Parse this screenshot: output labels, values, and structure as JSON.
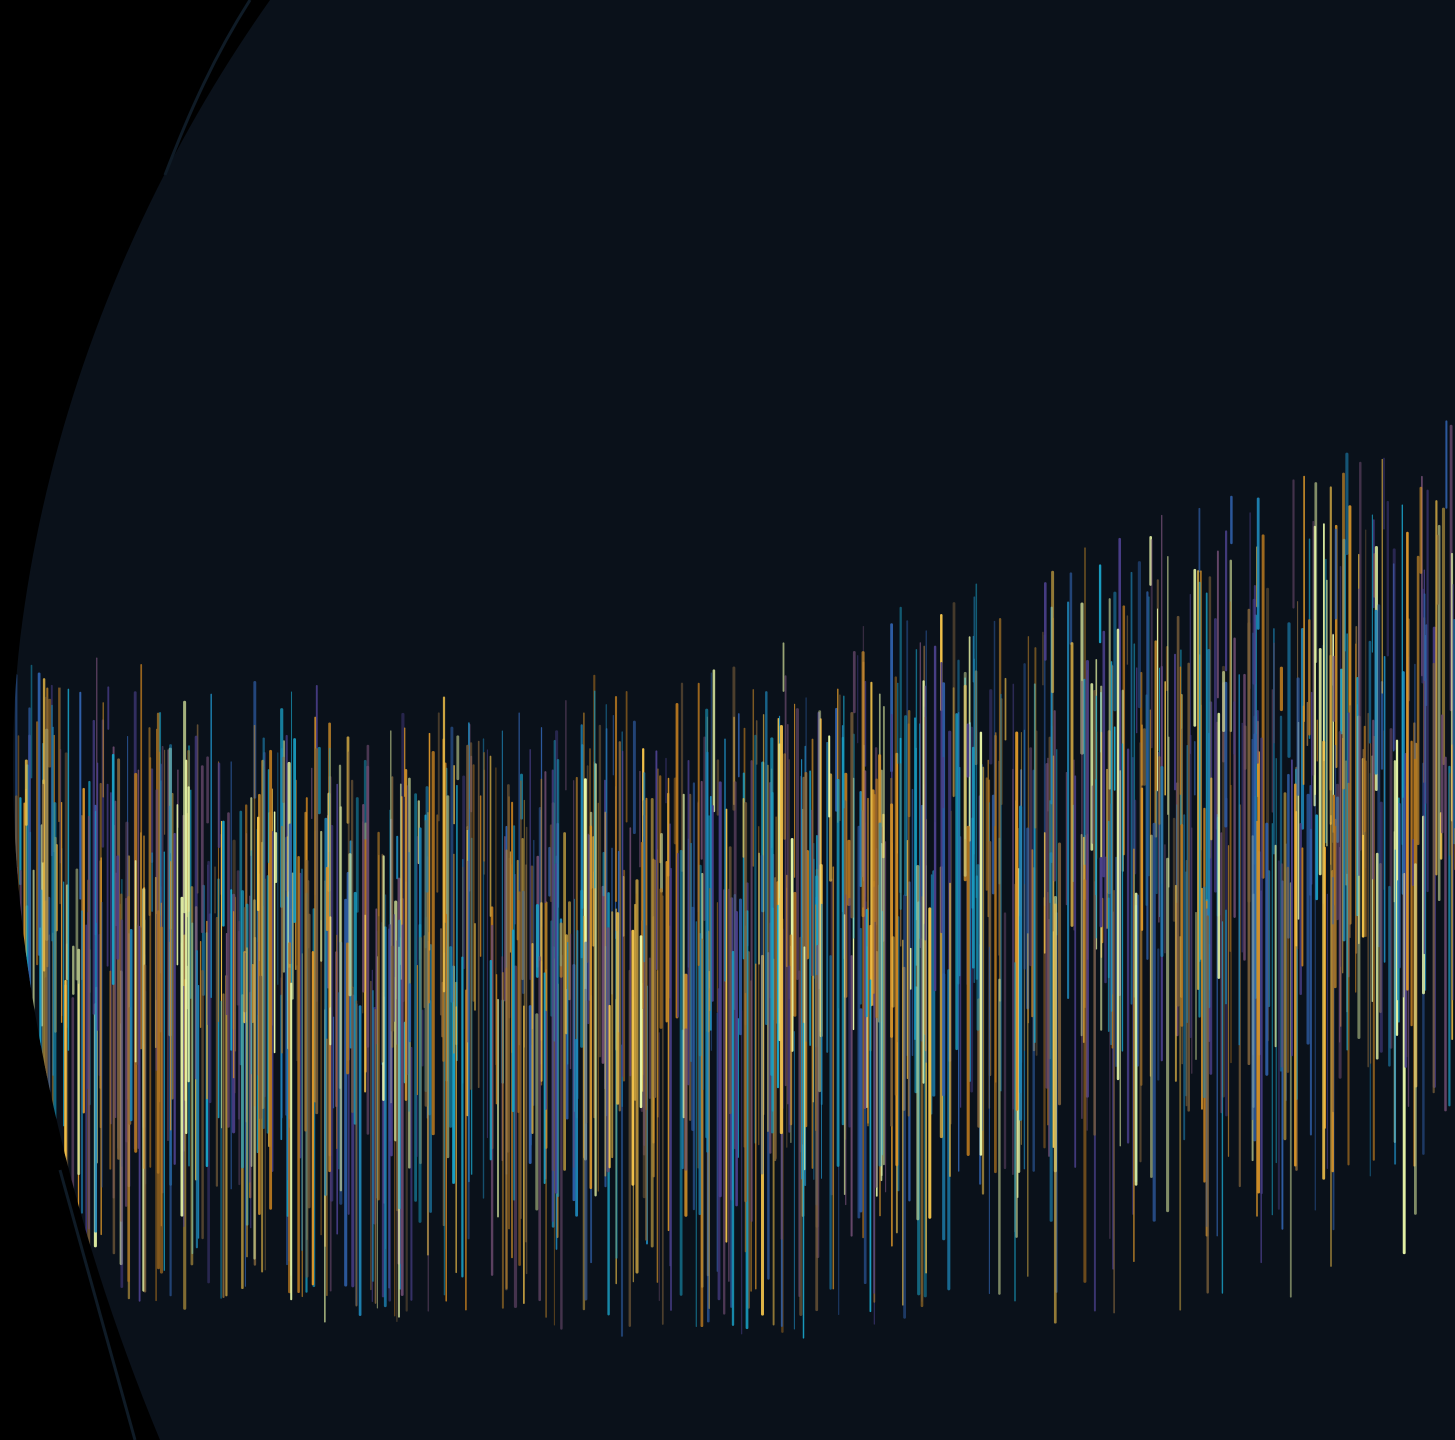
{
  "artwork": {
    "description_kind": "abstract-visualization",
    "colors": {
      "outer_background": "#000000",
      "panel_background": "#0a111a",
      "edge_line": "#0d1620",
      "palette": [
        "#e8f7a8",
        "#f2c24a",
        "#d9952a",
        "#b8781f",
        "#1aa3c8",
        "#1e86b8",
        "#2f5fa8",
        "#4a3f8a",
        "#6b4a6e",
        "#7a5f3a"
      ]
    }
  }
}
